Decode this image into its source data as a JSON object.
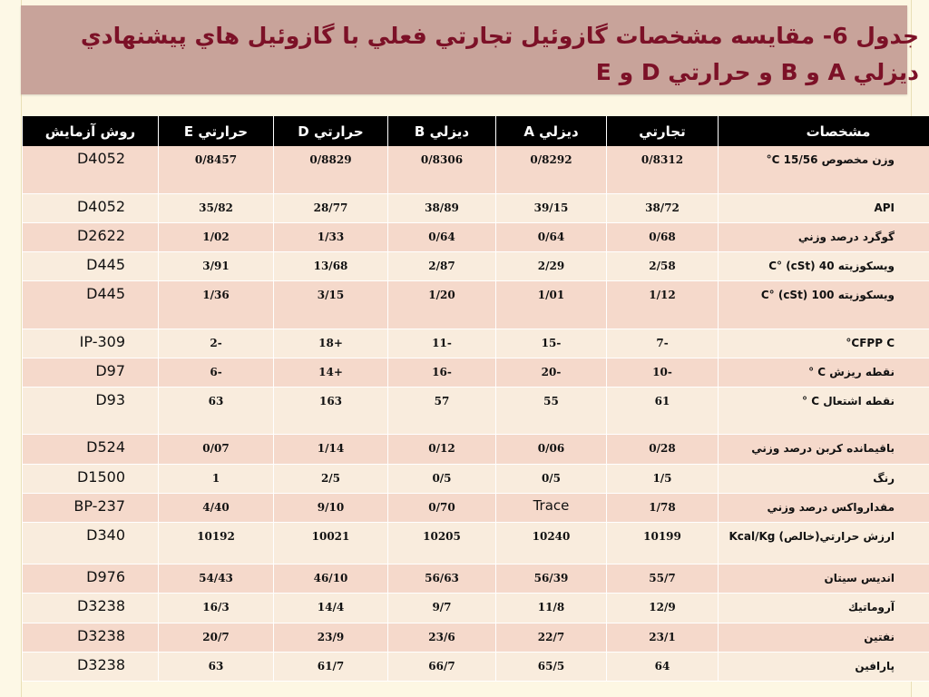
{
  "title": {
    "text": "جدول 6- مقايسه مشخصات گازوئيل تجارتي فعلي با گازوئيل هاي پيشنهادي ديزلي A و B و حرارتي D و E"
  },
  "table": {
    "headers": [
      "مشخصات",
      "تجارتي",
      "ديزلي A",
      "ديزلي B",
      "حرارتي D",
      "حرارتي E",
      "روش آزمايش"
    ],
    "rows": [
      {
        "property": "وزن مخصوص 15/56 C°",
        "values": [
          "0/8312",
          "0/8292",
          "0/8306",
          "0/8829",
          "0/8457"
        ],
        "method": "D4052"
      },
      {
        "property": "API",
        "values": [
          "38/72",
          "39/15",
          "38/89",
          "28/77",
          "35/82"
        ],
        "method": "D4052"
      },
      {
        "property": "گوگرد درصد وزني",
        "values": [
          "0/68",
          "0/64",
          "0/64",
          "1/33",
          "1/02"
        ],
        "method": "D2622"
      },
      {
        "property": "ويسكوزيته 40 C° (cSt)",
        "values": [
          "2/58",
          "2/29",
          "2/87",
          "13/68",
          "3/91"
        ],
        "method": "D445"
      },
      {
        "property": "ويسكوزيته 100 C° (cSt)",
        "values": [
          "1/12",
          "1/01",
          "1/20",
          "3/15",
          "1/36"
        ],
        "method": "D445"
      },
      {
        "property": "CFPP C°",
        "values": [
          "-7",
          "-15",
          "-11",
          "+18",
          "-2"
        ],
        "method": "IP-309"
      },
      {
        "property": "نقطه ريزش C °",
        "values": [
          "-10",
          "-20",
          "-16",
          "+14",
          "-6"
        ],
        "method": "D97"
      },
      {
        "property": "نقطه اشتعال C °",
        "values": [
          "61",
          "55",
          "57",
          "163",
          "63"
        ],
        "method": "D93"
      },
      {
        "property": "باقيمانده كربن درصد وزني",
        "values": [
          "0/28",
          "0/06",
          "0/12",
          "1/14",
          "0/07"
        ],
        "method": "D524"
      },
      {
        "property": "رنگ",
        "values": [
          "1/5",
          "0/5",
          "0/5",
          "2/5",
          "1"
        ],
        "method": "D1500"
      },
      {
        "property": "مقدارواكس درصد وزني",
        "values": [
          "1/78",
          "Trace",
          "0/70",
          "9/10",
          "4/40"
        ],
        "method": "BP-237"
      },
      {
        "property": "ارزش حرارتي(خالص) Kcal/Kg",
        "values": [
          "10199",
          "10240",
          "10205",
          "10021",
          "10192"
        ],
        "method": "D340"
      },
      {
        "property": "انديس سيتان",
        "values": [
          "55/7",
          "56/39",
          "56/63",
          "46/10",
          "54/43"
        ],
        "method": "D976"
      },
      {
        "property": "آروماتيك",
        "values": [
          "12/9",
          "11/8",
          "9/7",
          "14/4",
          "16/3"
        ],
        "method": "D3238"
      },
      {
        "property": "نفتين",
        "values": [
          "23/1",
          "22/7",
          "23/6",
          "23/9",
          "20/7"
        ],
        "method": "D3238"
      },
      {
        "property": "پارافين",
        "values": [
          "64",
          "65/5",
          "66/7",
          "61/7",
          "63"
        ],
        "method": "D3238"
      }
    ]
  },
  "colors": {
    "title_band": "#c8a39a",
    "title_text": "#7c1127",
    "header_bg": "#000000",
    "row_odd": "#f5d9cb",
    "row_even": "#f9ecdd"
  }
}
